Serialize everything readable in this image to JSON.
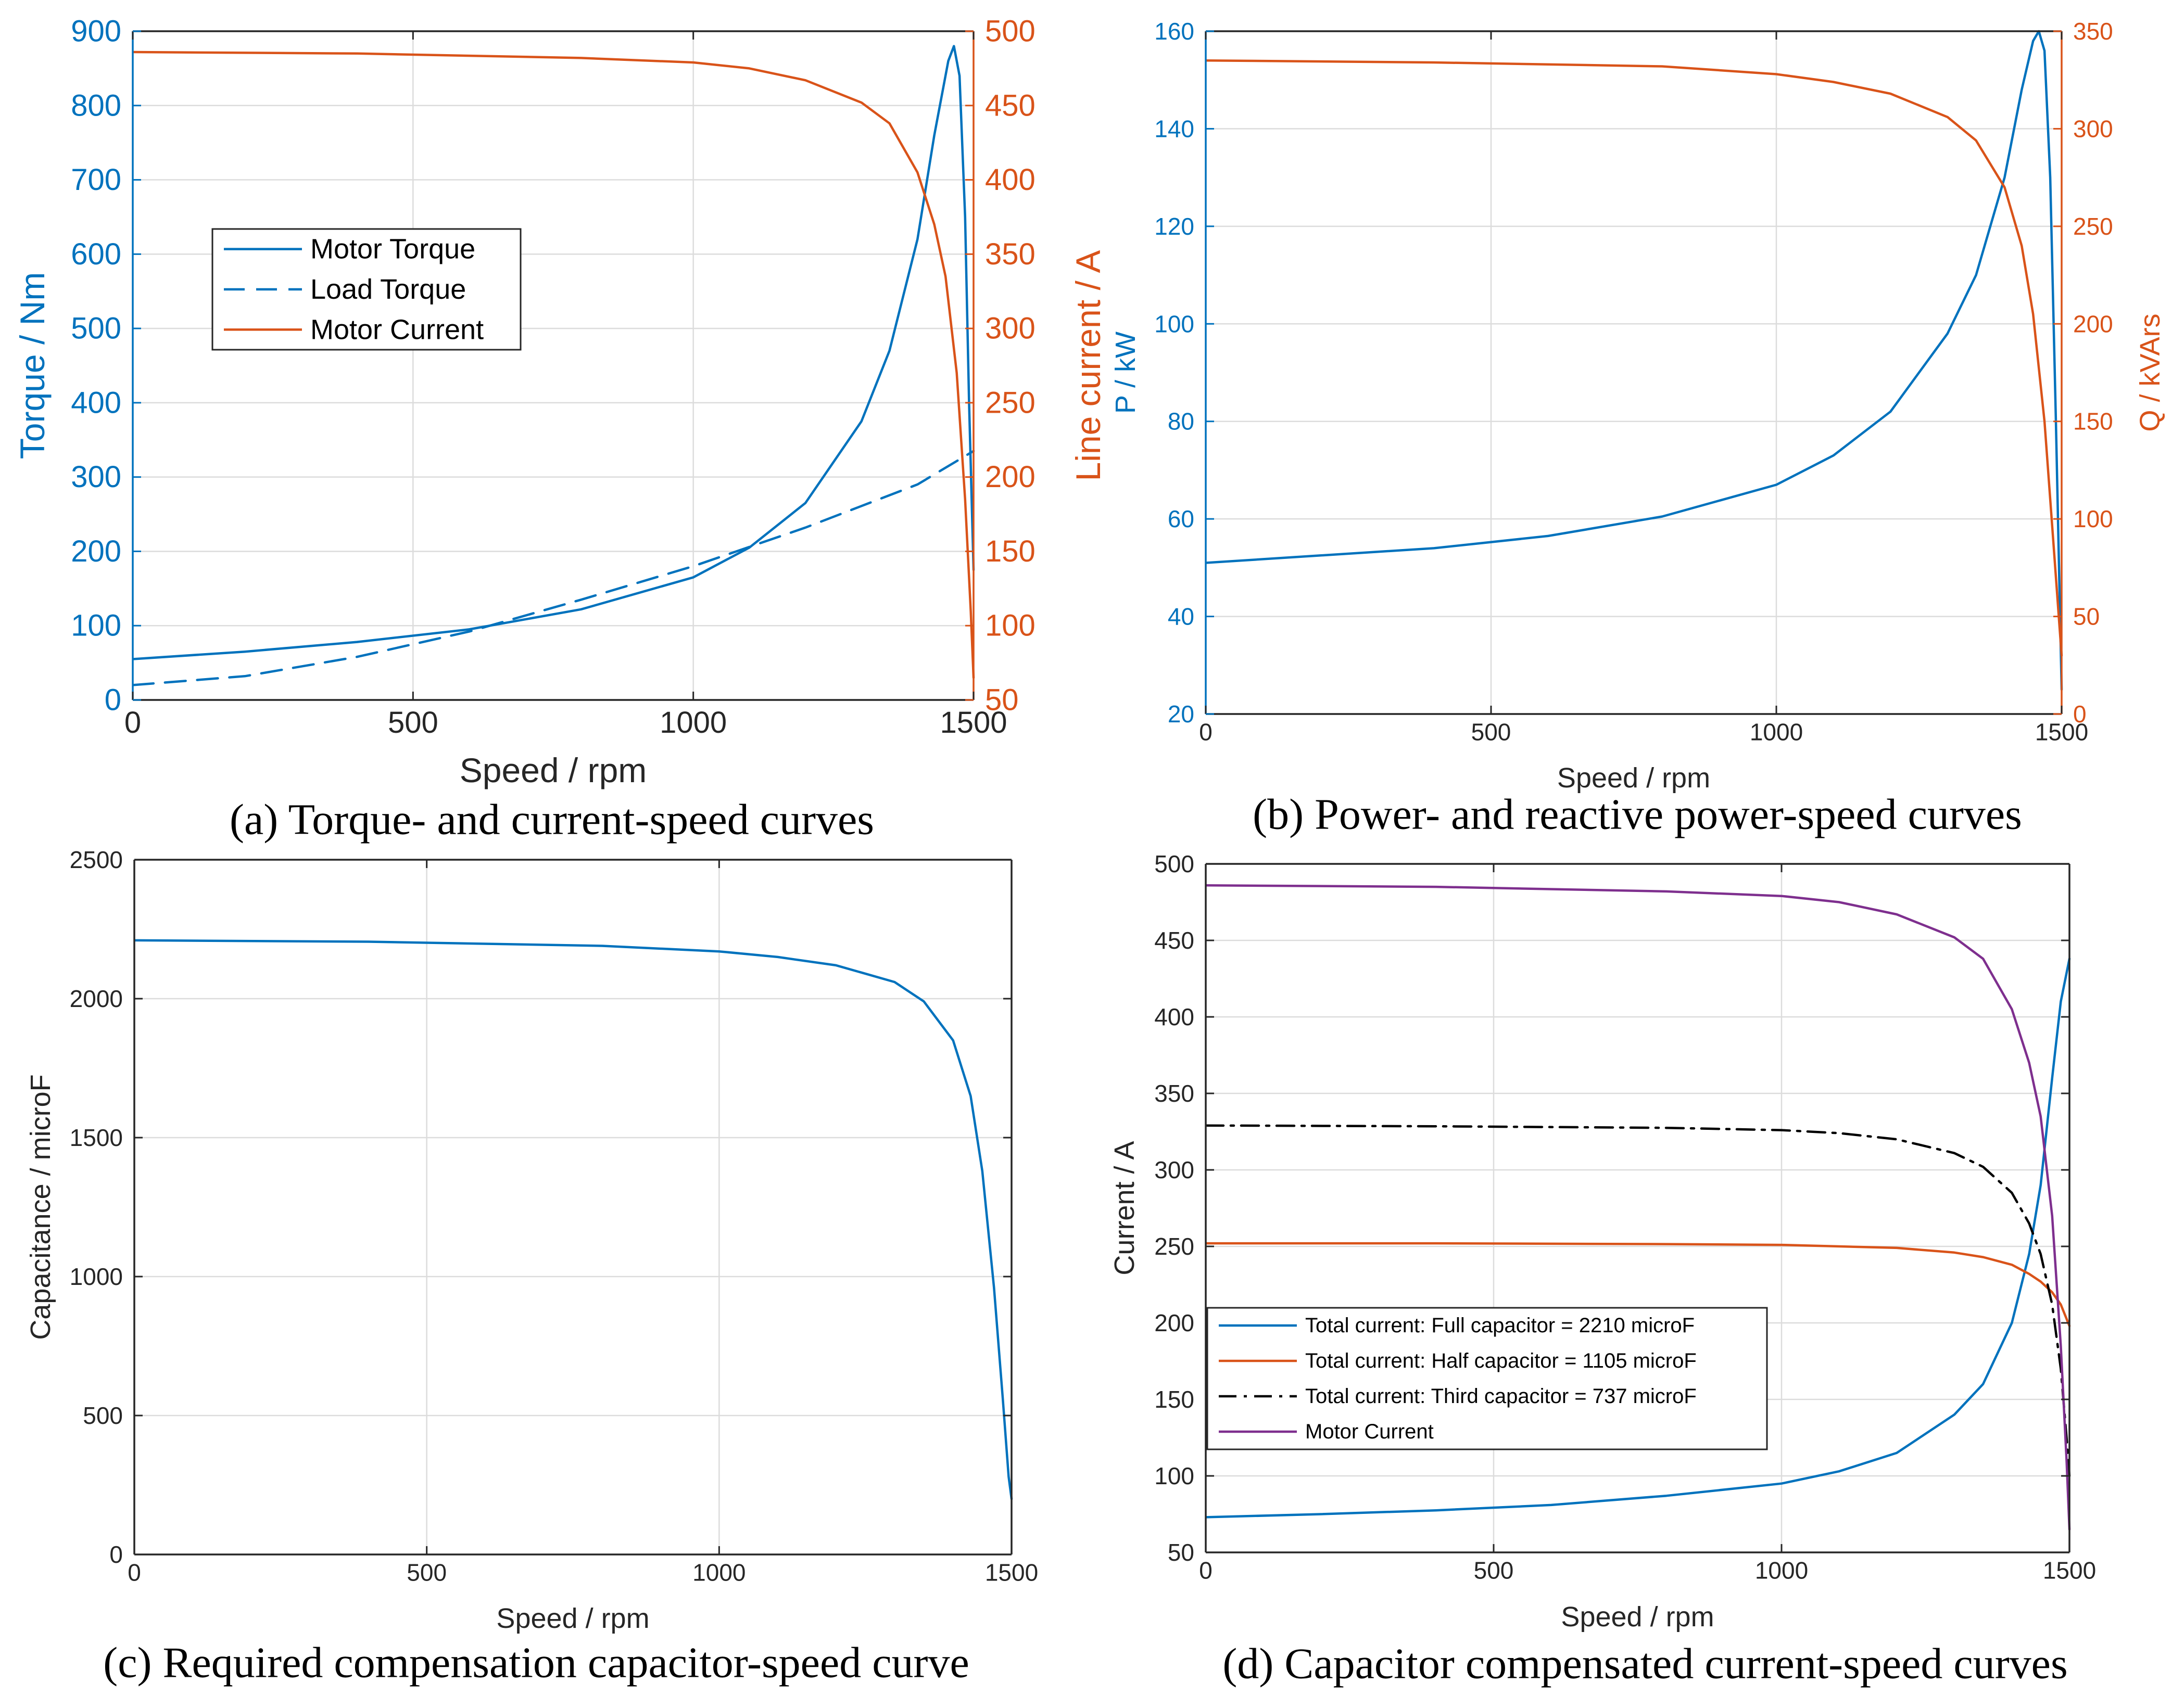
{
  "colors": {
    "blue": "#0072BD",
    "orange": "#D95319",
    "purple": "#7E2F8E",
    "black": "#000000",
    "grid": "#dcdcdc",
    "axis": "#262626"
  },
  "chart_data": [
    {
      "id": "a",
      "type": "line",
      "caption": "(a) Torque- and current-speed curves",
      "xlabel": "Speed / rpm",
      "ylabel": "Torque / Nm",
      "y2label": "Line current / A",
      "xlim": [
        0,
        1500
      ],
      "ylim": [
        0,
        900
      ],
      "y2lim": [
        50,
        500
      ],
      "xticks": [
        0,
        500,
        1000,
        1500
      ],
      "yticks": [
        0,
        100,
        200,
        300,
        400,
        500,
        600,
        700,
        800,
        900
      ],
      "y2ticks": [
        50,
        100,
        150,
        200,
        250,
        300,
        350,
        400,
        450,
        500
      ],
      "grid": true,
      "legend_position": "upper-left",
      "series": [
        {
          "name": "Motor Torque",
          "axis": "left",
          "color": "blue",
          "style": "solid",
          "x": [
            0,
            200,
            400,
            600,
            800,
            1000,
            1100,
            1200,
            1300,
            1350,
            1400,
            1430,
            1455,
            1465,
            1475,
            1485,
            1492,
            1500
          ],
          "y": [
            55,
            65,
            78,
            95,
            122,
            165,
            205,
            265,
            375,
            470,
            620,
            760,
            860,
            880,
            840,
            650,
            400,
            175
          ]
        },
        {
          "name": "Load Torque",
          "axis": "left",
          "color": "blue",
          "style": "dashed",
          "x": [
            0,
            200,
            400,
            600,
            800,
            1000,
            1200,
            1400,
            1500
          ],
          "y": [
            20,
            32,
            58,
            92,
            135,
            180,
            232,
            290,
            335
          ]
        },
        {
          "name": "Motor Current",
          "axis": "right",
          "color": "orange",
          "style": "solid",
          "x": [
            0,
            400,
            800,
            1000,
            1100,
            1200,
            1300,
            1350,
            1400,
            1430,
            1450,
            1470,
            1485,
            1495,
            1500
          ],
          "y": [
            486,
            485,
            482,
            479,
            475,
            467,
            452,
            438,
            405,
            370,
            335,
            270,
            185,
            110,
            65
          ]
        }
      ]
    },
    {
      "id": "b",
      "type": "line",
      "caption": "(b) Power- and reactive power-speed curves",
      "xlabel": "Speed / rpm",
      "ylabel": "P / kW",
      "y2label": "Q / kVArs",
      "xlim": [
        0,
        1500
      ],
      "ylim": [
        20,
        160
      ],
      "y2lim": [
        0,
        350
      ],
      "xticks": [
        0,
        500,
        1000,
        1500
      ],
      "yticks": [
        20,
        40,
        60,
        80,
        100,
        120,
        140,
        160
      ],
      "y2ticks": [
        0,
        50,
        100,
        150,
        200,
        250,
        300,
        350
      ],
      "grid": true,
      "series": [
        {
          "name": "P",
          "axis": "left",
          "color": "blue",
          "style": "solid",
          "x": [
            0,
            200,
            400,
            600,
            800,
            1000,
            1100,
            1200,
            1300,
            1350,
            1400,
            1430,
            1450,
            1460,
            1470,
            1480,
            1490,
            1500
          ],
          "y": [
            51,
            52.5,
            54,
            56.5,
            60.5,
            67,
            73,
            82,
            98,
            110,
            130,
            148,
            158,
            160,
            156,
            130,
            80,
            25
          ]
        },
        {
          "name": "Q",
          "axis": "right",
          "color": "orange",
          "style": "solid",
          "x": [
            0,
            400,
            800,
            1000,
            1100,
            1200,
            1300,
            1350,
            1400,
            1430,
            1450,
            1470,
            1485,
            1495,
            1500
          ],
          "y": [
            335,
            334,
            332,
            328,
            324,
            318,
            306,
            294,
            270,
            240,
            205,
            150,
            90,
            50,
            30
          ]
        }
      ]
    },
    {
      "id": "c",
      "type": "line",
      "caption": "(c) Required compensation capacitor-speed curve",
      "xlabel": "Speed / rpm",
      "ylabel": "Capacitance / microF",
      "xlim": [
        0,
        1500
      ],
      "ylim": [
        0,
        2500
      ],
      "xticks": [
        0,
        500,
        1000,
        1500
      ],
      "yticks": [
        0,
        500,
        1000,
        1500,
        2000,
        2500
      ],
      "grid": true,
      "series": [
        {
          "name": "Capacitance",
          "axis": "left",
          "color": "blue",
          "style": "solid",
          "x": [
            0,
            400,
            800,
            1000,
            1100,
            1200,
            1300,
            1350,
            1400,
            1430,
            1450,
            1470,
            1485,
            1495,
            1500
          ],
          "y": [
            2210,
            2205,
            2190,
            2170,
            2150,
            2120,
            2060,
            1990,
            1850,
            1650,
            1380,
            960,
            560,
            280,
            200
          ]
        }
      ]
    },
    {
      "id": "d",
      "type": "line",
      "caption": "(d) Capacitor compensated current-speed curves",
      "xlabel": "Speed / rpm",
      "ylabel": "Current / A",
      "xlim": [
        0,
        1500
      ],
      "ylim": [
        50,
        500
      ],
      "xticks": [
        0,
        500,
        1000,
        1500
      ],
      "yticks": [
        50,
        100,
        150,
        200,
        250,
        300,
        350,
        400,
        450,
        500
      ],
      "grid": true,
      "legend_position": "lower-left",
      "series": [
        {
          "name": "Total current: Full capacitor = 2210 microF",
          "color": "blue",
          "style": "solid",
          "x": [
            0,
            200,
            400,
            600,
            800,
            1000,
            1100,
            1200,
            1300,
            1350,
            1400,
            1430,
            1450,
            1470,
            1485,
            1500
          ],
          "y": [
            73,
            75,
            77.5,
            81,
            87,
            95,
            103,
            115,
            140,
            160,
            200,
            245,
            290,
            360,
            410,
            438
          ]
        },
        {
          "name": "Total current: Half capacitor = 1105 microF",
          "color": "orange",
          "style": "solid",
          "x": [
            0,
            400,
            800,
            1000,
            1200,
            1300,
            1350,
            1400,
            1430,
            1450,
            1470,
            1485,
            1500
          ],
          "y": [
            252,
            252,
            251.5,
            251,
            249,
            246,
            243,
            238,
            232,
            227,
            220,
            212,
            198
          ]
        },
        {
          "name": "Total current: Third capacitor = 737 microF",
          "color": "black",
          "style": "dashdot",
          "x": [
            0,
            400,
            800,
            1000,
            1100,
            1200,
            1300,
            1350,
            1400,
            1430,
            1450,
            1470,
            1485,
            1495,
            1500
          ],
          "y": [
            329,
            328.5,
            327.5,
            326,
            324,
            320,
            311,
            302,
            285,
            265,
            245,
            212,
            170,
            125,
            100
          ]
        },
        {
          "name": "Motor Current",
          "color": "purple",
          "style": "solid",
          "x": [
            0,
            400,
            800,
            1000,
            1100,
            1200,
            1300,
            1350,
            1400,
            1430,
            1450,
            1470,
            1485,
            1495,
            1500
          ],
          "y": [
            486,
            485,
            482,
            479,
            475,
            467,
            452,
            438,
            405,
            370,
            335,
            270,
            185,
            110,
            65
          ]
        }
      ]
    }
  ]
}
